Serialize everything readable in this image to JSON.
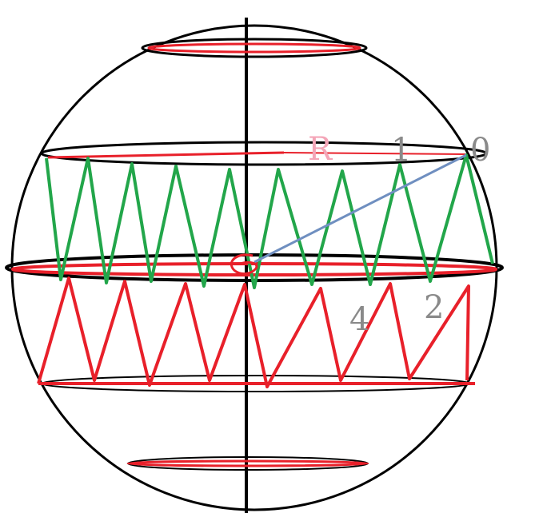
{
  "labels": {
    "radius": "R",
    "point_0": "0",
    "point_1": "1",
    "point_2": "2",
    "point_4": "4"
  },
  "colors": {
    "outline": "#000000",
    "red": "#e8202a",
    "green": "#22a64a",
    "blue": "#6f8fc0",
    "radius_label": "#f4a6b8",
    "number_label": "#8a8a8a"
  }
}
